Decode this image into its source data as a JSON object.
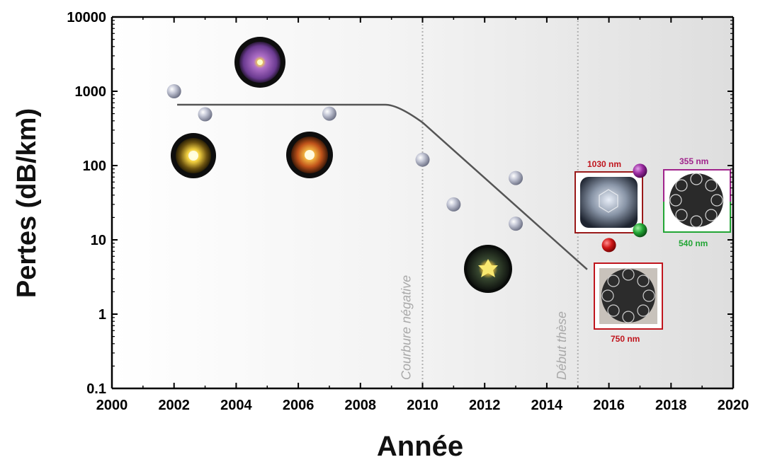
{
  "chart_data": {
    "type": "scatter",
    "title": "",
    "xlabel": "Année",
    "ylabel": "Pertes (dB/km)",
    "xlim": [
      2000,
      2020
    ],
    "ylim": [
      0.1,
      10000
    ],
    "yscale": "log",
    "x_ticks": [
      2000,
      2002,
      2004,
      2006,
      2008,
      2010,
      2012,
      2014,
      2016,
      2018,
      2020
    ],
    "y_ticks": [
      0.1,
      1,
      10,
      100,
      1000,
      10000
    ],
    "y_tick_labels": [
      "0.1",
      "1",
      "10",
      "100",
      "1000",
      "10000"
    ],
    "grid": false,
    "points": [
      {
        "x": 2002,
        "y": 1000
      },
      {
        "x": 2003,
        "y": 490
      },
      {
        "x": 2007,
        "y": 500
      },
      {
        "x": 2010,
        "y": 120
      },
      {
        "x": 2011,
        "y": 30
      },
      {
        "x": 2013,
        "y": 68
      },
      {
        "x": 2013,
        "y": 16.5
      }
    ],
    "colored_points": [
      {
        "x": 2016,
        "y": 8.5,
        "color": "#d01818"
      },
      {
        "x": 2017,
        "y": 13.5,
        "color": "#22a535"
      },
      {
        "x": 2017,
        "y": 85,
        "color": "#9a2aa0"
      }
    ],
    "trend_line": [
      {
        "x": 2002.1,
        "y": 660
      },
      {
        "x": 2008.8,
        "y": 660
      },
      {
        "x": 2010,
        "y": 380
      },
      {
        "x": 2015.3,
        "y": 4
      }
    ],
    "vertical_lines": [
      {
        "x": 2010,
        "label": "Courbure négative"
      },
      {
        "x": 2015,
        "label": "Début thèse"
      }
    ],
    "wavelength_labels": [
      {
        "text": "1030 nm",
        "color": "#c0151d"
      },
      {
        "text": "355 nm",
        "color": "#a0248c"
      },
      {
        "text": "540 nm",
        "color": "#22a535"
      },
      {
        "text": "750 nm",
        "color": "#c0151d"
      }
    ]
  },
  "colors": {
    "point": "#b8bccc",
    "trend": "#555555",
    "vline": "#b0b0b0"
  }
}
